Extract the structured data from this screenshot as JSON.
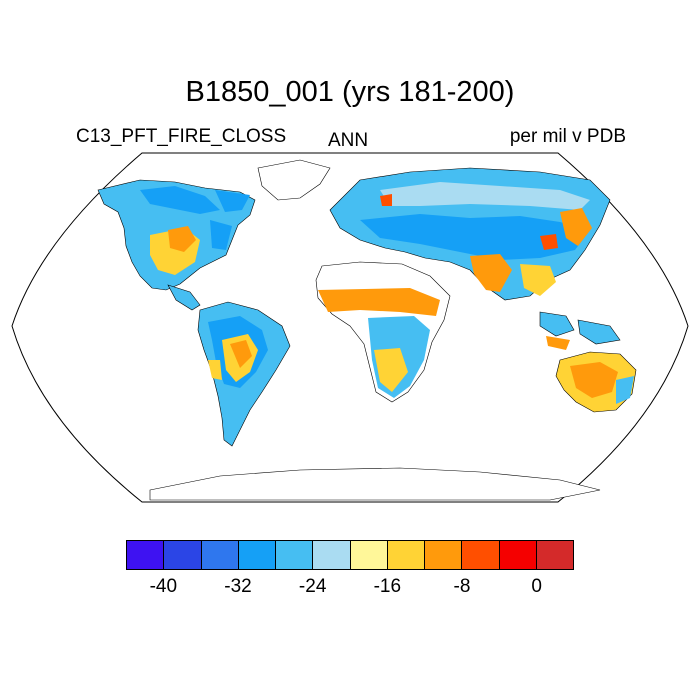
{
  "title": "B1850_001 (yrs 181-200)",
  "left_label": "C13_PFT_FIRE_CLOSS",
  "center_label": "ANN",
  "right_label": "per mil v PDB",
  "colorbar": {
    "colors": [
      "#3e12f2",
      "#2b45e6",
      "#2f77ee",
      "#15a0f6",
      "#46bef2",
      "#aadcf2",
      "#fff799",
      "#ffd335",
      "#ff9a0c",
      "#ff4f00",
      "#f50000",
      "#d42a2a"
    ],
    "tick_labels": [
      "-40",
      "-32",
      "-24",
      "-16",
      "-8",
      "0"
    ],
    "levels": [
      -44,
      -40,
      -36,
      -32,
      -28,
      -24,
      -20,
      -16,
      -12,
      -8,
      -4,
      0,
      4
    ]
  }
}
